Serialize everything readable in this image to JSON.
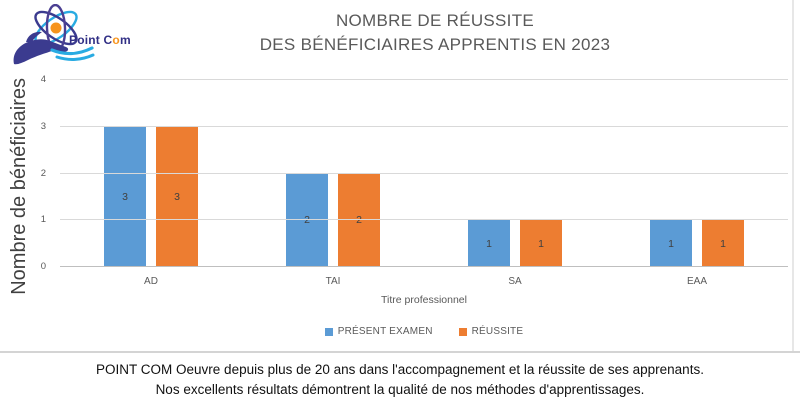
{
  "logo": {
    "word1": "Point",
    "word2_c": "C",
    "word2_o": "o",
    "word2_m": "m"
  },
  "title": {
    "line1": "NOMBRE DE RÉUSSITE",
    "line2": "DES BÉNÉFICIAIRES APPRENTIS EN 2023"
  },
  "chart_data": {
    "type": "bar",
    "title": "NOMBRE DE RÉUSSITE DES BÉNÉFICIAIRES APPRENTIS EN 2023",
    "categories": [
      "AD",
      "TAI",
      "SA",
      "EAA"
    ],
    "series": [
      {
        "name": "PRÉSENT EXAMEN",
        "color": "#5b9bd5",
        "values": [
          3,
          2,
          1,
          1
        ]
      },
      {
        "name": "RÉUSSITE",
        "color": "#ed7d31",
        "values": [
          3,
          2,
          1,
          1
        ]
      }
    ],
    "xlabel": "Titre professionnel",
    "ylabel": "Nombre de bénéficiaires",
    "ylim": [
      0,
      4
    ],
    "yticks": [
      0,
      1,
      2,
      3,
      4
    ],
    "grid": true,
    "legend_position": "bottom",
    "data_labels": true
  },
  "footer": {
    "line1": "POINT COM Oeuvre depuis plus de 20 ans dans l'accompagnement et la réussite de ses apprenants.",
    "line2": "Nos excellents résultats démontrent la qualité de nos méthodes d'apprentissages."
  },
  "colors": {
    "series_blue": "#5b9bd5",
    "series_orange": "#ed7d31",
    "title_gray": "#595959",
    "axis_text_gray": "#595959",
    "value_label_gray": "#404040",
    "gridline_gray": "#d9d9d9",
    "logo_navy": "#312f85",
    "logo_orange": "#f7941d",
    "logo_cyan": "#29abe2"
  }
}
